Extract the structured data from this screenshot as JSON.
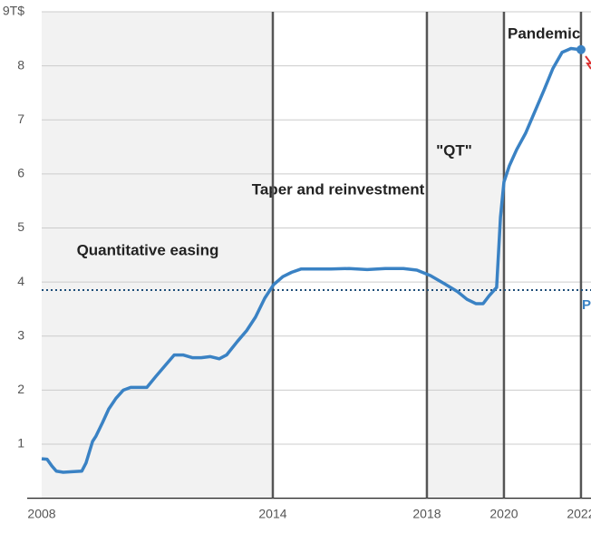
{
  "chart_data": {
    "type": "line",
    "annotations": [
      "Quantitative easing",
      "Taper and reinvestment",
      "\"QT\"",
      "Pandemic",
      "P"
    ],
    "x": [
      2008.0,
      2008.14,
      2008.26,
      2008.38,
      2008.56,
      2008.79,
      2009.04,
      2009.15,
      2009.32,
      2009.41,
      2009.58,
      2009.74,
      2009.93,
      2010.12,
      2010.31,
      2010.49,
      2010.73,
      2010.96,
      2011.2,
      2011.44,
      2011.67,
      2011.91,
      2012.14,
      2012.38,
      2012.61,
      2012.8,
      2013.08,
      2013.32,
      2013.55,
      2013.79,
      2014.02,
      2014.26,
      2014.49,
      2014.73,
      2015.04,
      2015.51,
      2015.98,
      2016.45,
      2016.92,
      2017.39,
      2017.74,
      2018.09,
      2018.45,
      2018.8,
      2019.04,
      2019.27,
      2019.46,
      2019.62,
      2019.81,
      2019.91,
      2020.0,
      2020.14,
      2020.33,
      2020.56,
      2020.8,
      2021.04,
      2021.27,
      2021.51,
      2021.74,
      2022.0
    ],
    "series": [
      {
        "color": "#3a82c4",
        "values": [
          0.73,
          0.72,
          0.6,
          0.5,
          0.48,
          0.49,
          0.5,
          0.65,
          1.05,
          1.15,
          1.4,
          1.65,
          1.85,
          2.0,
          2.05,
          2.05,
          2.05,
          2.25,
          2.45,
          2.65,
          2.65,
          2.6,
          2.6,
          2.62,
          2.58,
          2.65,
          2.9,
          3.1,
          3.35,
          3.7,
          3.95,
          4.1,
          4.18,
          4.24,
          4.24,
          4.24,
          4.25,
          4.23,
          4.25,
          4.25,
          4.22,
          4.12,
          3.97,
          3.82,
          3.68,
          3.6,
          3.6,
          3.75,
          3.9,
          5.2,
          5.85,
          6.15,
          6.45,
          6.75,
          7.15,
          7.55,
          7.95,
          8.25,
          8.32,
          8.3
        ]
      }
    ],
    "reference_line": 3.85,
    "reference_color": "#1f4e79",
    "xlim": [
      2008,
      2022.26
    ],
    "xticks": [
      2008,
      2014,
      2018,
      2020,
      2022
    ],
    "ylim": [
      0,
      9
    ],
    "yticks": [
      1,
      2,
      3,
      4,
      5,
      6,
      7,
      8,
      {
        "value": 9,
        "label": "9T$"
      }
    ],
    "grid": true
  }
}
